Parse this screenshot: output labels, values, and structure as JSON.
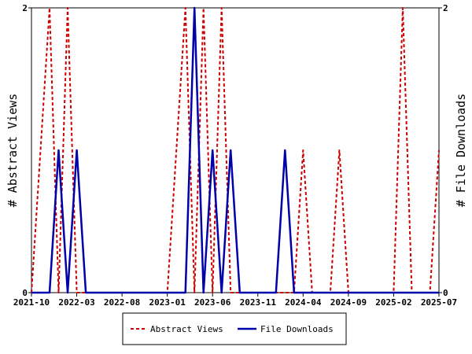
{
  "colors": {
    "views": "#cc0000",
    "downloads": "#0000aa"
  },
  "chart_data": {
    "type": "line",
    "ylabel_left": "# Abstract Views",
    "ylabel_right": "# File Downloads",
    "ylim": [
      0,
      2
    ],
    "y_ticks": [
      "0",
      "2"
    ],
    "x_ticks": [
      "2021-10",
      "2022-03",
      "2022-08",
      "2023-01",
      "2023-06",
      "2023-11",
      "2024-04",
      "2024-09",
      "2025-02",
      "2025-07"
    ],
    "xlim": [
      "2021-10",
      "2025-07"
    ],
    "legend_position": "bottom",
    "series": [
      {
        "name": "Abstract Views",
        "style": "dashed",
        "x": [
          "2021-10",
          "2021-11",
          "2021-12",
          "2022-01",
          "2022-02",
          "2022-03",
          "2022-04",
          "2022-05",
          "2022-06",
          "2022-07",
          "2022-08",
          "2022-09",
          "2022-10",
          "2022-11",
          "2022-12",
          "2023-01",
          "2023-02",
          "2023-03",
          "2023-04",
          "2023-05",
          "2023-06",
          "2023-07",
          "2023-08",
          "2023-09",
          "2023-10",
          "2023-11",
          "2023-12",
          "2024-01",
          "2024-02",
          "2024-03",
          "2024-04",
          "2024-05",
          "2024-06",
          "2024-07",
          "2024-08",
          "2024-09",
          "2024-10",
          "2024-11",
          "2024-12",
          "2025-01",
          "2025-02",
          "2025-03",
          "2025-04",
          "2025-05",
          "2025-06",
          "2025-07"
        ],
        "values": [
          0,
          1,
          2,
          0,
          2,
          0,
          0,
          0,
          0,
          0,
          0,
          0,
          0,
          0,
          0,
          0,
          1,
          2,
          0,
          2,
          0,
          2,
          0,
          0,
          0,
          0,
          0,
          0,
          0,
          0,
          1,
          0,
          0,
          0,
          1,
          0,
          0,
          0,
          0,
          0,
          0,
          2,
          0,
          0,
          0,
          1
        ]
      },
      {
        "name": "File Downloads",
        "style": "solid",
        "x": [
          "2021-10",
          "2021-11",
          "2021-12",
          "2022-01",
          "2022-02",
          "2022-03",
          "2022-04",
          "2022-05",
          "2022-06",
          "2022-07",
          "2022-08",
          "2022-09",
          "2022-10",
          "2022-11",
          "2022-12",
          "2023-01",
          "2023-02",
          "2023-03",
          "2023-04",
          "2023-05",
          "2023-06",
          "2023-07",
          "2023-08",
          "2023-09",
          "2023-10",
          "2023-11",
          "2023-12",
          "2024-01",
          "2024-02",
          "2024-03",
          "2024-04",
          "2024-05",
          "2024-06",
          "2024-07",
          "2024-08",
          "2024-09",
          "2024-10",
          "2024-11",
          "2024-12",
          "2025-01",
          "2025-02",
          "2025-03",
          "2025-04",
          "2025-05",
          "2025-06",
          "2025-07"
        ],
        "values": [
          0,
          0,
          0,
          1,
          0,
          1,
          0,
          0,
          0,
          0,
          0,
          0,
          0,
          0,
          0,
          0,
          0,
          0,
          2,
          0,
          1,
          0,
          1,
          0,
          0,
          0,
          0,
          0,
          1,
          0,
          0,
          0,
          0,
          0,
          0,
          0,
          0,
          0,
          0,
          0,
          0,
          0,
          0,
          0,
          0,
          0
        ]
      }
    ]
  }
}
